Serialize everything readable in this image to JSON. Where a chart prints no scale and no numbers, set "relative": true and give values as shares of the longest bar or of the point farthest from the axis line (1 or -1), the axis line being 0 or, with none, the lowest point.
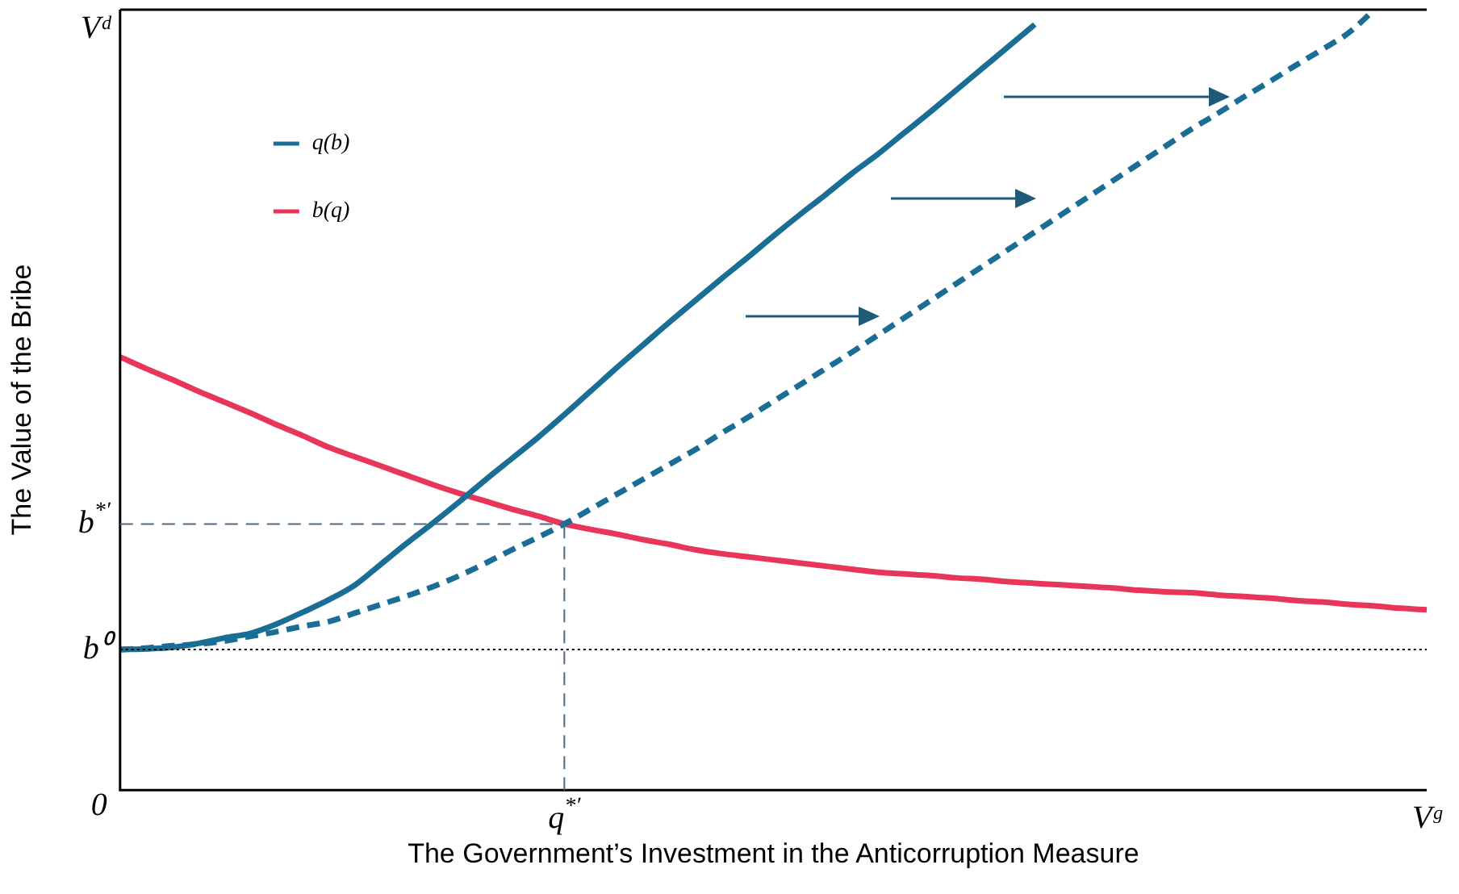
{
  "chart_data": {
    "type": "line",
    "relative": true,
    "xlabel": "The Government’s Investment in the Anticorruption Measure",
    "ylabel": "The Value of the Bribe",
    "legend": "top left",
    "grid": false,
    "marker": "none",
    "categories": [
      null,
      null,
      null,
      null,
      null,
      null,
      null,
      null,
      null,
      null,
      null,
      null,
      null,
      null,
      null,
      null,
      null,
      "q$^{*′}$",
      null,
      null,
      null,
      null,
      null,
      null,
      null,
      null,
      null,
      null,
      null,
      null,
      null,
      null,
      null,
      null,
      null,
      null,
      null,
      null,
      null,
      null,
      null,
      null,
      null,
      null,
      null,
      null,
      null,
      null,
      null,
      null,
      "Vᵍ"
    ],
    "series": [
      {
        "name": "q(b)",
        "color": "#1a6e96",
        "line_style": "solid",
        "values": [
          0.18,
          0.181,
          0.183,
          0.188,
          0.195,
          0.201,
          0.213,
          0.228,
          0.244,
          0.263,
          0.29,
          0.317,
          0.343,
          0.37,
          0.398,
          0.425,
          0.452,
          0.481,
          0.511,
          0.541,
          0.57,
          0.599,
          0.627,
          0.655,
          0.682,
          0.71,
          0.737,
          0.763,
          0.79,
          0.815,
          0.842,
          0.869,
          0.897,
          0.925,
          0.953,
          0.981,
          null,
          null,
          null,
          null,
          null,
          null,
          null,
          null,
          null,
          null,
          null,
          null,
          null,
          null,
          null
        ]
      },
      {
        "color": "#1a6e96",
        "line_style": "dashed",
        "values": [
          0.18,
          0.182,
          0.185,
          0.187,
          0.191,
          0.197,
          0.203,
          0.21,
          0.216,
          0.227,
          0.238,
          0.249,
          0.261,
          0.275,
          0.291,
          0.308,
          0.324,
          0.341,
          0.36,
          0.379,
          0.398,
          0.417,
          0.436,
          0.457,
          0.477,
          0.498,
          0.519,
          0.54,
          0.561,
          0.583,
          0.605,
          0.627,
          0.649,
          0.671,
          0.693,
          0.715,
          0.737,
          0.759,
          0.781,
          0.803,
          0.825,
          0.847,
          0.867,
          0.888,
          0.908,
          0.929,
          0.949,
          0.97,
          1,
          null,
          null
        ]
      },
      {
        "name": "b(q)",
        "color": "#e8365a",
        "line_style": "solid",
        "values": [
          0.555,
          0.54,
          0.526,
          0.511,
          0.497,
          0.483,
          0.468,
          0.454,
          0.439,
          0.427,
          0.415,
          0.403,
          0.391,
          0.38,
          0.37,
          0.36,
          0.351,
          0.341,
          0.334,
          0.328,
          0.321,
          0.315,
          0.308,
          0.303,
          0.299,
          0.295,
          0.291,
          0.287,
          0.283,
          0.279,
          0.277,
          0.275,
          0.272,
          0.27,
          0.267,
          0.265,
          0.263,
          0.261,
          0.259,
          0.256,
          0.254,
          0.253,
          0.25,
          0.248,
          0.246,
          0.243,
          0.241,
          0.238,
          0.236,
          0.233,
          0.231
        ]
      }
    ],
    "ref_lines": [
      {
        "axis": "y",
        "value": 0.18,
        "label": "b⁰",
        "color": "#000000",
        "line_style": "dotted"
      },
      {
        "axis": "y",
        "value": 0.341,
        "label": "b$^{*′}$",
        "color": "#4a6a88",
        "line_style": "dashed"
      },
      {
        "axis": "x",
        "value": "q$^{*′}$",
        "color": "#4a6a88",
        "line_style": "dashed"
      },
      {
        "axis": "y",
        "value": 1,
        "label": "Vᵈ",
        "color": "#000000",
        "line_style": "solid"
      }
    ],
    "annotations": [
      "0"
    ]
  }
}
